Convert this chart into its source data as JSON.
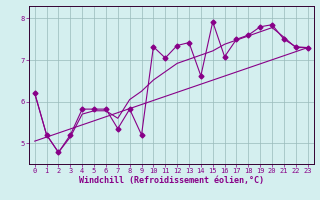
{
  "xlabel": "Windchill (Refroidissement éolien,°C)",
  "bg_color": "#d4efef",
  "line_color": "#880088",
  "grid_color": "#99bbbb",
  "xlim": [
    -0.5,
    23.5
  ],
  "ylim": [
    4.5,
    8.3
  ],
  "yticks": [
    5,
    6,
    7,
    8
  ],
  "xticks": [
    0,
    1,
    2,
    3,
    4,
    5,
    6,
    7,
    8,
    9,
    10,
    11,
    12,
    13,
    14,
    15,
    16,
    17,
    18,
    19,
    20,
    21,
    22,
    23
  ],
  "data_line": [
    6.2,
    5.2,
    4.78,
    5.2,
    5.82,
    5.82,
    5.82,
    5.35,
    5.82,
    5.2,
    7.32,
    7.05,
    7.35,
    7.42,
    6.62,
    7.92,
    7.08,
    7.5,
    7.6,
    7.8,
    7.85,
    7.5,
    7.32,
    7.3
  ],
  "smooth_line": [
    6.2,
    5.2,
    4.78,
    5.15,
    5.7,
    5.78,
    5.78,
    5.6,
    6.05,
    6.25,
    6.52,
    6.72,
    6.92,
    7.02,
    7.12,
    7.22,
    7.38,
    7.48,
    7.58,
    7.68,
    7.78,
    7.55,
    7.3,
    7.3
  ],
  "trend_line_x": [
    0,
    23
  ],
  "trend_line_y": [
    5.05,
    7.3
  ],
  "marker": "D",
  "markersize": 2.5,
  "linewidth": 0.8,
  "tick_fontsize": 5.0,
  "xlabel_fontsize": 6.0,
  "tick_color": "#880088",
  "spine_color": "#330033"
}
